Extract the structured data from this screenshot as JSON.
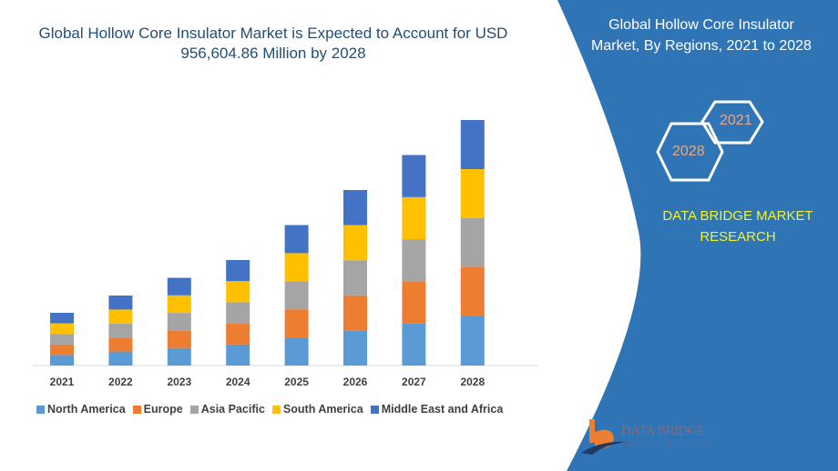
{
  "title": "Global Hollow Core Insulator Market is Expected to Account for USD 956,604.86 Million by 2028",
  "panel": {
    "title": "Global Hollow Core Insulator Market,  By Regions, 2021 to 2028",
    "hex_start": "2021",
    "hex_end": "2028",
    "brand": "DATA BRIDGE MARKET RESEARCH",
    "logo_text": "DATA BRIDGE",
    "logo_sub": "MARKET RESEARCH",
    "color": "#2f74b5"
  },
  "chart_data": {
    "type": "bar",
    "stacked": true,
    "categories": [
      "2021",
      "2022",
      "2023",
      "2024",
      "2025",
      "2026",
      "2027",
      "2028"
    ],
    "series": [
      {
        "name": "North America",
        "color": "#5b9bd5",
        "values": [
          11.6,
          15.4,
          19.3,
          23.2,
          30.9,
          38.6,
          46.3,
          54
        ]
      },
      {
        "name": "Europe",
        "color": "#ed7d31",
        "values": [
          11.6,
          15.4,
          19.3,
          23.2,
          30.9,
          38.6,
          46.3,
          54
        ]
      },
      {
        "name": "Asia Pacific",
        "color": "#a5a5a5",
        "values": [
          11.6,
          15.4,
          19.3,
          23.2,
          30.9,
          38.6,
          46.3,
          54
        ]
      },
      {
        "name": "South America",
        "color": "#ffc000",
        "values": [
          11.6,
          15.4,
          19.3,
          23.2,
          30.9,
          38.6,
          46.3,
          54
        ]
      },
      {
        "name": "Middle East and Africa",
        "color": "#4472c4",
        "values": [
          11.6,
          15.4,
          19.3,
          23.2,
          30.9,
          38.6,
          46.3,
          54
        ]
      }
    ],
    "y_axis_shown": false,
    "grid": false,
    "legend": "bottom"
  }
}
